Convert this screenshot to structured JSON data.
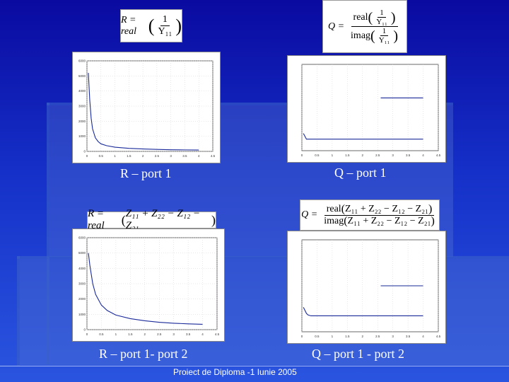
{
  "formulas": {
    "r_port1": {
      "lhs": "R = real",
      "num": "1",
      "den": "Y₁₁"
    },
    "q_port1": {
      "lhs": "Q =",
      "num_fn": "real",
      "den_fn": "imag",
      "num": "1",
      "den": "Y₁₁"
    },
    "r_port12": {
      "lhs": "R = real",
      "expr": "Z₁₁ + Z₂₂ − Z₁₂ − Z₂₁"
    },
    "q_port12": {
      "lhs": "Q =",
      "num_fn": "real",
      "den_fn": "imag",
      "num_expr": "Z₁₁ + Z₂₂ − Z₁₂ − Z₂₁",
      "den_expr": "Z₁₁ + Z₂₂ − Z₁₂ − Z₂₁"
    }
  },
  "captions": {
    "r_port1": "R – port 1",
    "q_port1": "Q – port 1",
    "r_port12": "R – port 1- port 2",
    "q_port12": "Q – port 1 - port 2"
  },
  "footer": "Proiect de Diploma -1 Iunie 2005",
  "colors": {
    "background": "#1530c8",
    "curve": "#1a2a9a",
    "grid": "#d0d0d0"
  },
  "chart_data": [
    {
      "type": "line",
      "id": "r_port1",
      "title": "",
      "xlim": [
        0,
        4.5
      ],
      "ylim": [
        0,
        6000
      ],
      "x_ticks": [
        0,
        0.5,
        1,
        1.5,
        2,
        2.5,
        3,
        3.5,
        4,
        4.5
      ],
      "y_ticks": [
        0,
        1000,
        2000,
        3000,
        4000,
        5000,
        6000
      ],
      "series": [
        {
          "x": [
            0.05,
            0.1,
            0.15,
            0.2,
            0.3,
            0.4,
            0.5,
            0.7,
            1,
            1.5,
            2,
            2.5,
            3,
            3.5,
            4
          ],
          "y": [
            5200,
            3400,
            2200,
            1500,
            900,
            650,
            500,
            380,
            280,
            200,
            160,
            130,
            110,
            100,
            90
          ]
        }
      ]
    },
    {
      "type": "line",
      "id": "q_port1",
      "title": "",
      "xlim": [
        0,
        4.5
      ],
      "ylim": [
        -10,
        80
      ],
      "x_ticks": [
        0,
        0.5,
        1,
        1.5,
        2,
        2.5,
        3,
        3.5,
        4,
        4.5
      ],
      "series": [
        {
          "x": [
            0.05,
            0.1,
            0.15,
            0.2,
            4
          ],
          "y": [
            8,
            5,
            2,
            2,
            2
          ]
        },
        {
          "x": [
            2.6,
            4
          ],
          "y": [
            45,
            45
          ]
        }
      ]
    },
    {
      "type": "line",
      "id": "r_port12",
      "title": "",
      "xlim": [
        0,
        4.5
      ],
      "ylim": [
        0,
        6000
      ],
      "x_ticks": [
        0,
        0.5,
        1,
        1.5,
        2,
        2.5,
        3,
        3.5,
        4,
        4.5
      ],
      "y_ticks": [
        0,
        1000,
        2000,
        3000,
        4000,
        5000,
        6000
      ],
      "series": [
        {
          "x": [
            0.05,
            0.1,
            0.2,
            0.3,
            0.5,
            0.7,
            1,
            1.5,
            2,
            2.5,
            3,
            3.5,
            4
          ],
          "y": [
            5000,
            4200,
            3000,
            2300,
            1600,
            1250,
            950,
            720,
            580,
            480,
            420,
            380,
            350
          ]
        }
      ]
    },
    {
      "type": "line",
      "id": "q_port12",
      "title": "",
      "xlim": [
        0,
        4.5
      ],
      "ylim": [
        -5,
        25
      ],
      "x_ticks": [
        0,
        0.5,
        1,
        1.5,
        2,
        2.5,
        3,
        3.5,
        4,
        4.5
      ],
      "series": [
        {
          "x": [
            0.05,
            0.1,
            0.15,
            0.2,
            0.3,
            4
          ],
          "y": [
            3,
            2,
            1,
            0.5,
            0.2,
            0.2
          ]
        },
        {
          "x": [
            2.6,
            4
          ],
          "y": [
            10,
            10
          ]
        }
      ]
    }
  ]
}
